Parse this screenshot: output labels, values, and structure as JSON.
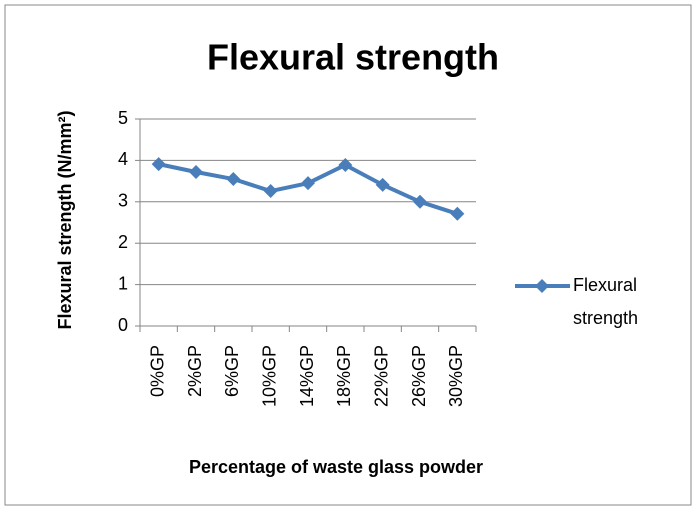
{
  "chart_data": {
    "type": "line",
    "title": "Flexural strength",
    "x_label": "Percentage of waste glass powder",
    "y_label": "Flexural strength (N/mm²)",
    "categories": [
      "0%GP",
      "2%GP",
      "6%GP",
      "10%GP",
      "14%GP",
      "18%GP",
      "22%GP",
      "26%GP",
      "30%GP"
    ],
    "series": [
      {
        "name": "Flexural strength",
        "color": "#4a7ebb",
        "values": [
          3.91,
          3.72,
          3.55,
          3.26,
          3.45,
          3.89,
          3.41,
          3.0,
          2.71
        ]
      }
    ],
    "ylim": [
      0,
      5
    ],
    "yticks": [
      0,
      1,
      2,
      3,
      4,
      5
    ],
    "grid": true,
    "legend": "right"
  }
}
